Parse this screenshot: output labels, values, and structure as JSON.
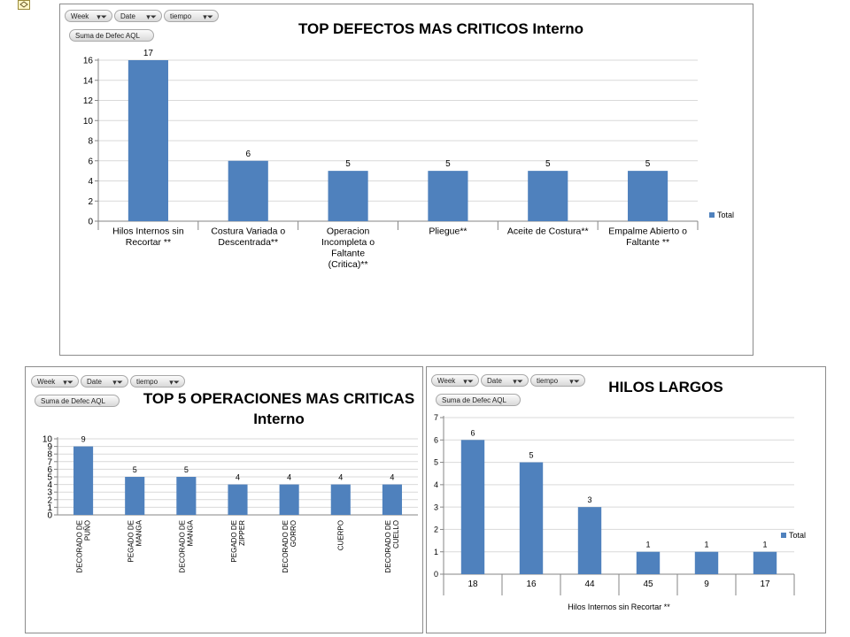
{
  "filters": {
    "week": "Week",
    "date": "Date",
    "tiempo": "tiempo",
    "sum": "Suma de Defec AQL"
  },
  "colors": {
    "bar": "#4f81bd",
    "grid": "#d9d9d9",
    "axis": "#868686"
  },
  "chart_data": [
    {
      "type": "bar",
      "title": "TOP DEFECTOS MAS CRITICOS Interno",
      "categories": [
        "Hilos Internos sin Recortar **",
        "Costura Variada o Descentrada**",
        "Operacion Incompleta o Faltante (Critica)**",
        "Pliegue**",
        "Aceite de Costura**",
        "Empalme Abierto o Faltante **"
      ],
      "series": [
        {
          "name": "Total",
          "values": [
            17,
            6,
            5,
            5,
            5,
            5
          ]
        }
      ],
      "data_labels": [
        "17",
        "6",
        "5",
        "5",
        "5",
        "5"
      ],
      "ylim": [
        0,
        16
      ],
      "yticks": [
        0,
        2,
        4,
        6,
        8,
        10,
        12,
        14,
        16
      ],
      "legend": "right"
    },
    {
      "type": "bar",
      "title": "TOP 5 OPERACIONES MAS CRITICAS Interno",
      "categories": [
        "DECORADO DE PUÑO",
        "PEGADO DE MANGA",
        "DECORADO DE MANGA",
        "PEGADO DE ZIPPER",
        "DECORADO DE GORRO",
        "CUERPO",
        "DECORADO DE CUELLO"
      ],
      "series": [
        {
          "values": [
            9,
            5,
            5,
            4,
            4,
            4,
            4
          ]
        }
      ],
      "data_labels": [
        "9",
        "5",
        "5",
        "4",
        "4",
        "4",
        "4"
      ],
      "ylim": [
        0,
        10
      ],
      "yticks": [
        0,
        1,
        2,
        3,
        4,
        5,
        6,
        7,
        8,
        9,
        10
      ]
    },
    {
      "type": "bar",
      "title": "HILOS LARGOS",
      "xlabel": "Hilos Internos sin Recortar **",
      "categories": [
        "18",
        "16",
        "44",
        "45",
        "9",
        "17"
      ],
      "series": [
        {
          "name": "Total",
          "values": [
            6,
            5,
            3,
            1,
            1,
            1
          ]
        }
      ],
      "data_labels": [
        "6",
        "5",
        "3",
        "1",
        "1",
        "1"
      ],
      "ylim": [
        0,
        7
      ],
      "yticks": [
        0,
        1,
        2,
        3,
        4,
        5,
        6,
        7
      ],
      "legend": "right"
    }
  ]
}
